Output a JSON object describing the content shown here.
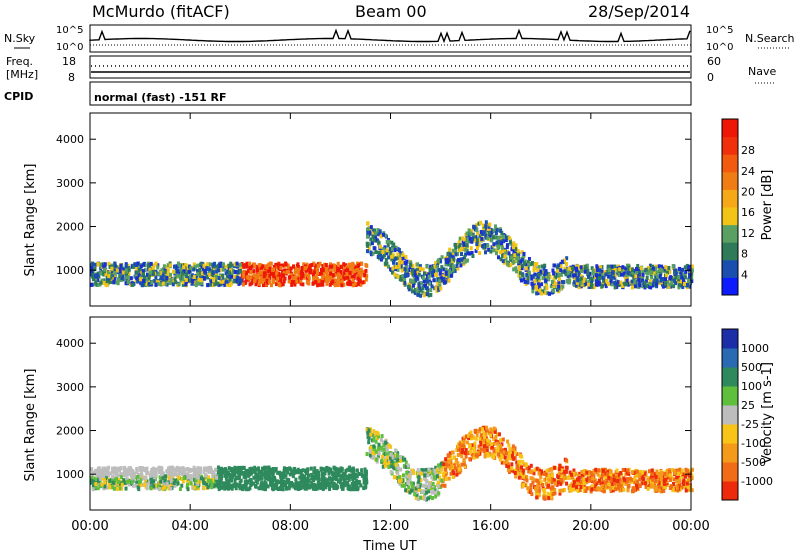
{
  "header": {
    "station": "McMurdo (fitACF)",
    "beam": "Beam 00",
    "date": "28/Sep/2014"
  },
  "params": {
    "left_top": "N.Sky",
    "left_freq_1": "Freq.",
    "left_freq_2": "[MHz]",
    "left_cpid": "CPID",
    "right_top": "N.Search",
    "right_nave": "Nave",
    "sky_ticks": [
      "10^5",
      "10^0"
    ],
    "search_ticks": [
      "10^5",
      "10^0"
    ],
    "freq_ticks": [
      "18",
      "8"
    ],
    "nave_ticks": [
      "60",
      "0"
    ],
    "cpid_text": "normal (fast) -151 RF"
  },
  "chart_data": [
    {
      "type": "heatmap",
      "ylabel": "Slant Range [km]",
      "xlabel": "Time UT",
      "x_ticks": [
        "00:00",
        "04:00",
        "08:00",
        "12:00",
        "16:00",
        "20:00",
        "00:00"
      ],
      "y_ticks": [
        1000,
        2000,
        3000,
        4000
      ],
      "ylim": [
        180,
        4600
      ],
      "colorbar": {
        "label": "Power [dB]",
        "ticks": [
          "4",
          "8",
          "12",
          "16",
          "20",
          "24",
          "28"
        ],
        "colors": [
          "#0c1cff",
          "#1a4fb0",
          "#2f7a58",
          "#5aa062",
          "#f2c417",
          "#f5a818",
          "#f07d14",
          "#f25a10",
          "#f0300a",
          "#ee1606"
        ]
      }
    },
    {
      "type": "heatmap",
      "ylabel": "Slant Range [km]",
      "xlabel": "Time UT",
      "x_ticks": [
        "00:00",
        "04:00",
        "08:00",
        "12:00",
        "16:00",
        "20:00",
        "00:00"
      ],
      "y_ticks": [
        1000,
        2000,
        3000,
        4000
      ],
      "ylim": [
        180,
        4600
      ],
      "colorbar": {
        "label": "Velocity [m s-1]",
        "ticks": [
          "1000",
          "500",
          "100",
          "25",
          "-25",
          "-100",
          "-500",
          "-1000"
        ],
        "colors": [
          "#1b2ea8",
          "#2a6ab3",
          "#2e8a5c",
          "#5fbf3d",
          "#bdbdbd",
          "#f7c417",
          "#f49a1b",
          "#f06c17",
          "#ee2a0c"
        ]
      }
    }
  ]
}
